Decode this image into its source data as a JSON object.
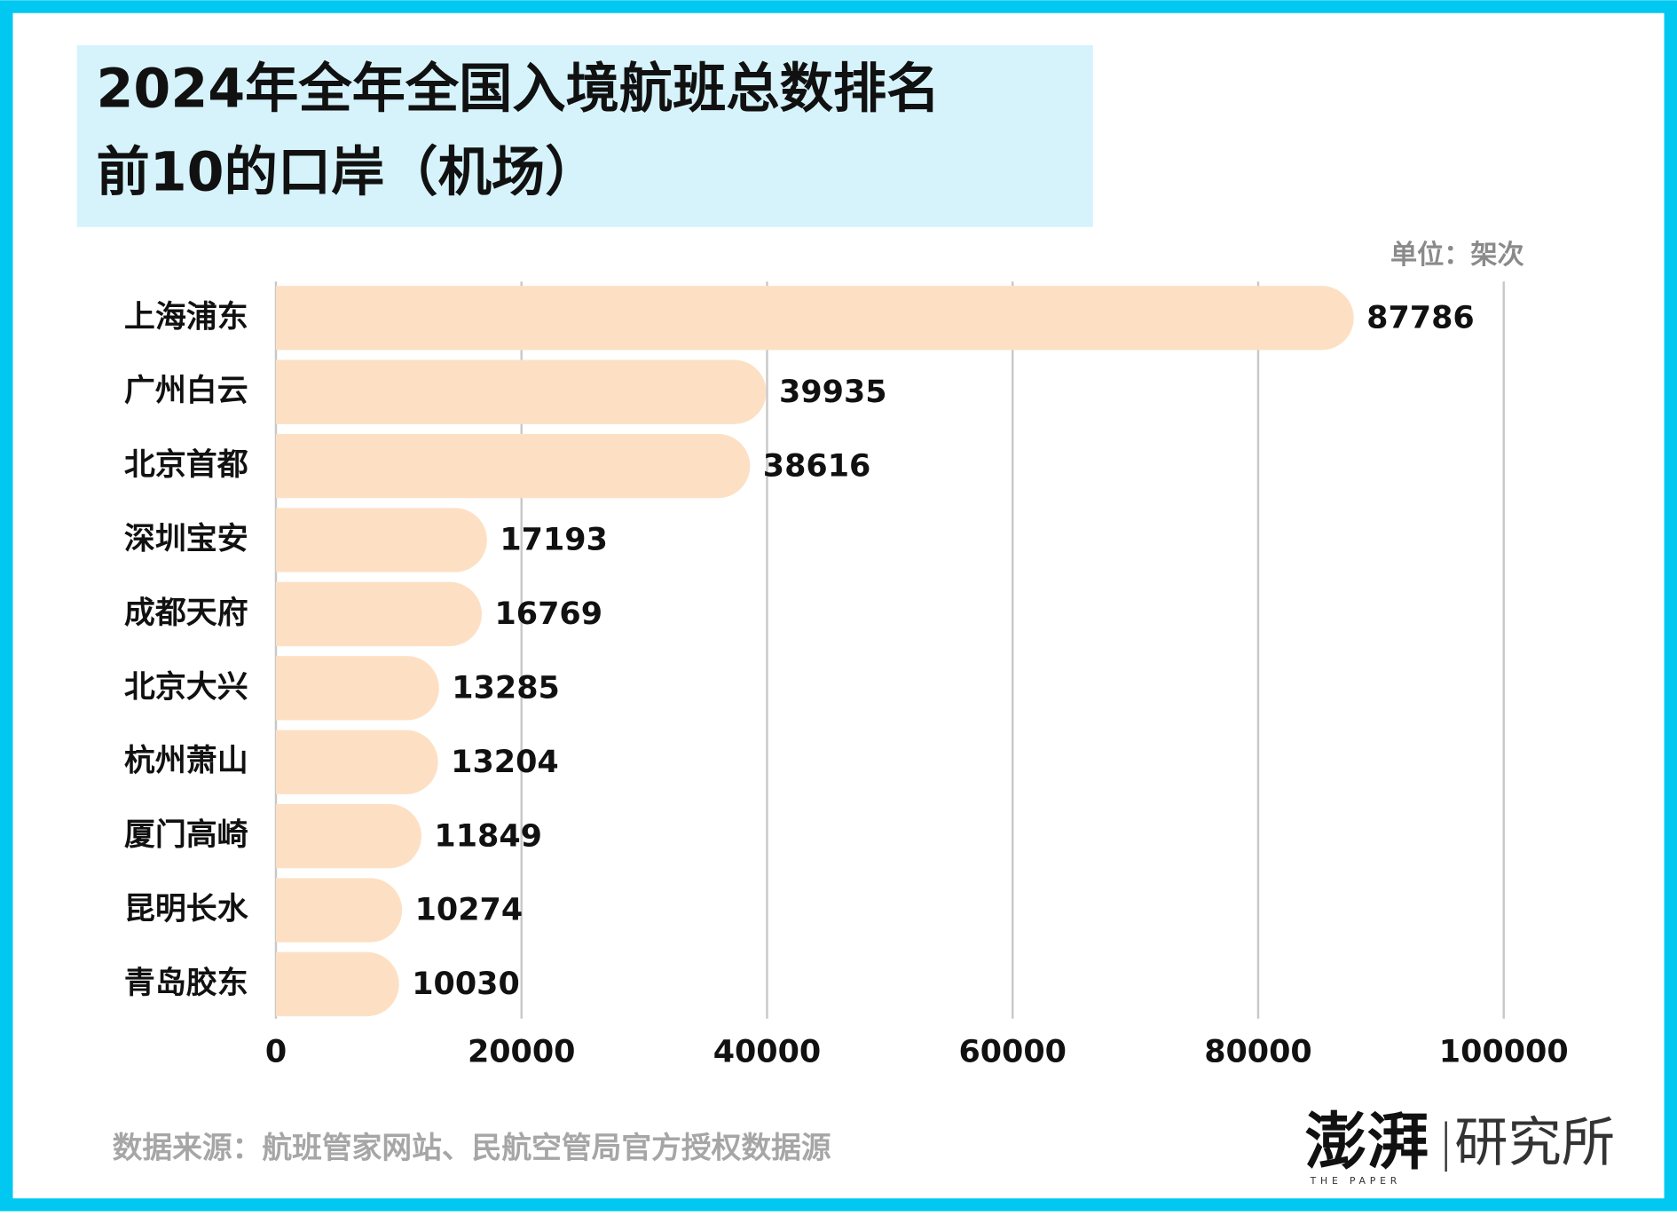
{
  "chart_data": {
    "type": "hbar",
    "title": [
      "2024年全年全国入境航班总数排名",
      "前10的口岸（机场）"
    ],
    "unit": "单位：架次",
    "categories": [
      "上海浦东",
      "广州白云",
      "北京首都",
      "深圳宝安",
      "成都天府",
      "北京大兴",
      "杭州萧山",
      "厦门高崎",
      "昆明长水",
      "青岛胶东"
    ],
    "values": [
      87786,
      39935,
      38616,
      17193,
      16769,
      13285,
      13204,
      11849,
      10274,
      10030
    ],
    "color": "#fde0c4",
    "xlim": [
      0,
      100000
    ],
    "xticks": [
      0,
      20000,
      40000,
      60000,
      80000,
      100000
    ],
    "grid": true
  },
  "source": "数据来源：航班管家网站、民航空管局官方授权数据源",
  "logo": {
    "name": "澎湃",
    "sub": "研究所",
    "en": "THE PAPER"
  }
}
